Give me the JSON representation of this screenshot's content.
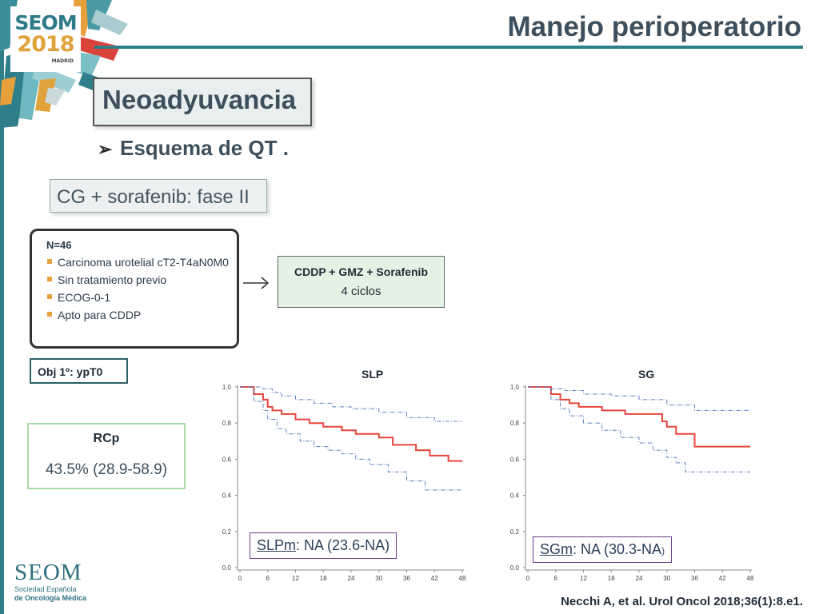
{
  "header": {
    "title": "Manejo perioperatorio",
    "logo": {
      "brand": "SEOM",
      "year": "2018",
      "city": "MADRID"
    }
  },
  "section": {
    "title": "Neoadyuvancia"
  },
  "bullet": {
    "text": "Esquema de QT ."
  },
  "subtitle": {
    "text": "CG + sorafenib: fase II"
  },
  "criteria": {
    "n": "N=46",
    "items": [
      "Carcinoma urotelial cT2-T4aN0M0",
      "Sin tratamiento previo",
      "ECOG-0-1",
      "Apto para CDDP"
    ]
  },
  "regimen": {
    "title": "CDDP + GMZ + Sorafenib",
    "cycles": "4 ciclos"
  },
  "objective": {
    "text": "Obj 1º: ypT0"
  },
  "rcp": {
    "title": "RCp",
    "value": "43.5% (28.9-58.9)"
  },
  "survival": {
    "slp": {
      "label": "SLP",
      "median_label": "SLPm",
      "median_value": ": NA (23.6-NA)"
    },
    "sg": {
      "label": "SG",
      "median_label": "SGm",
      "median_value": ": NA (30.3-NA",
      "median_close": ")"
    }
  },
  "footer": {
    "brand": "SEOM",
    "org_line1": "Sociedad  Española",
    "org_line2": "de Oncología Médica",
    "citation": "Necchi A, et al. Urol Oncol 2018;36(1):8.e1."
  },
  "colors": {
    "accent": "#2f7f8a",
    "km_estimate": "#e8463c",
    "km_ci": "#5b7fbf",
    "bullet": "#e8a03c"
  },
  "chart_data": [
    {
      "type": "line",
      "title": "SLP",
      "xlim": [
        0,
        48
      ],
      "ylim": [
        0,
        1.0
      ],
      "xticks": [
        0,
        6,
        12,
        18,
        24,
        30,
        36,
        42,
        48
      ],
      "yticks": [
        "0.0",
        "0.2",
        "0.4",
        "0.6",
        "0.8",
        "1.0"
      ],
      "series": [
        {
          "style": "estimate",
          "x": [
            0,
            3,
            5,
            6,
            7,
            9,
            12,
            15,
            18,
            22,
            25,
            30,
            33,
            38,
            41,
            45,
            48
          ],
          "y": [
            1.0,
            0.96,
            0.93,
            0.89,
            0.87,
            0.85,
            0.82,
            0.8,
            0.78,
            0.76,
            0.74,
            0.72,
            0.68,
            0.65,
            0.62,
            0.59,
            0.59
          ]
        },
        {
          "style": "ci",
          "x": [
            0,
            3,
            5,
            7,
            9,
            12,
            16,
            20,
            24,
            30,
            36,
            42,
            48
          ],
          "y": [
            1.0,
            1.0,
            0.99,
            0.97,
            0.95,
            0.93,
            0.91,
            0.89,
            0.88,
            0.86,
            0.83,
            0.81,
            0.81
          ]
        },
        {
          "style": "ci",
          "x": [
            0,
            3,
            5,
            6,
            8,
            10,
            13,
            16,
            19,
            22,
            25,
            28,
            32,
            36,
            40,
            42,
            48
          ],
          "y": [
            1.0,
            0.92,
            0.87,
            0.82,
            0.77,
            0.74,
            0.7,
            0.67,
            0.65,
            0.63,
            0.6,
            0.57,
            0.53,
            0.48,
            0.43,
            0.43,
            0.43
          ]
        }
      ]
    },
    {
      "type": "line",
      "title": "SG",
      "xlim": [
        0,
        48
      ],
      "ylim": [
        0,
        1.0
      ],
      "xticks": [
        0,
        6,
        12,
        18,
        24,
        30,
        36,
        42,
        48
      ],
      "yticks": [
        "0.0",
        "0.2",
        "0.4",
        "0.6",
        "0.8",
        "1.0"
      ],
      "series": [
        {
          "style": "estimate",
          "x": [
            0,
            5,
            7,
            9,
            11,
            16,
            21,
            29,
            30,
            32,
            36,
            48
          ],
          "y": [
            1.0,
            0.96,
            0.93,
            0.91,
            0.89,
            0.87,
            0.85,
            0.81,
            0.78,
            0.74,
            0.67,
            0.67
          ]
        },
        {
          "style": "ci",
          "x": [
            0,
            5,
            8,
            12,
            18,
            24,
            30,
            36,
            48
          ],
          "y": [
            1.0,
            0.99,
            0.98,
            0.96,
            0.95,
            0.93,
            0.9,
            0.87,
            0.87
          ]
        },
        {
          "style": "ci",
          "x": [
            0,
            5,
            7,
            9,
            12,
            16,
            20,
            24,
            27,
            30,
            32,
            34,
            48
          ],
          "y": [
            1.0,
            0.93,
            0.88,
            0.84,
            0.8,
            0.76,
            0.72,
            0.69,
            0.65,
            0.61,
            0.58,
            0.53,
            0.53
          ]
        }
      ]
    }
  ]
}
